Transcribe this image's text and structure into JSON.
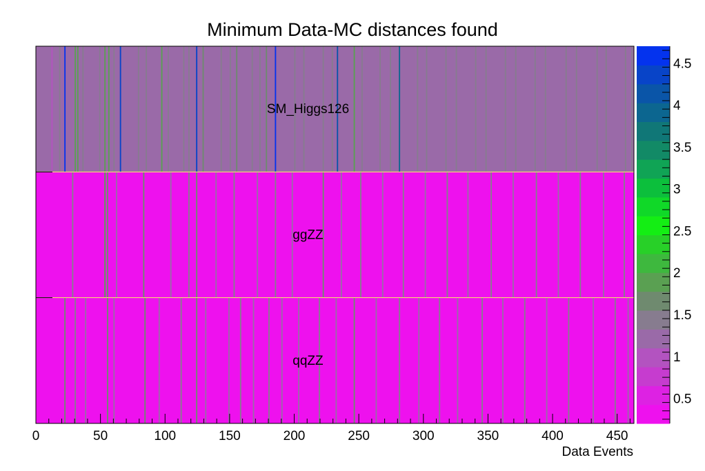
{
  "chart_data": {
    "type": "heatmap",
    "title": "Minimum Data-MC distances found",
    "xlabel": "Data Events",
    "ylabel": "",
    "xlim": [
      0,
      463
    ],
    "x_ticks": [
      0,
      50,
      100,
      150,
      200,
      250,
      300,
      350,
      400,
      450
    ],
    "x_tick_labels": [
      "0",
      "50",
      "100",
      "150",
      "200",
      "250",
      "300",
      "350",
      "400",
      "450"
    ],
    "rows": [
      "qqZZ",
      "ggZZ",
      "SM_Higgs126"
    ],
    "colorbar": {
      "range": [
        0.2,
        4.7
      ],
      "ticks": [
        0.5,
        1,
        1.5,
        2,
        2.5,
        3,
        3.5,
        4,
        4.5
      ],
      "tick_labels": [
        "0.5",
        "1",
        "1.5",
        "2",
        "2.5",
        "3",
        "3.5",
        "4",
        "4.5"
      ],
      "palette": [
        "#ee11ee",
        "#dd22e3",
        "#c63ccf",
        "#b353c0",
        "#9a6aa8",
        "#877c8f",
        "#6f8a6f",
        "#5aa052",
        "#3eb83e",
        "#28d028",
        "#14ee14",
        "#10d828",
        "#0cbf3c",
        "#10a455",
        "#128a66",
        "#107777",
        "#0c6690",
        "#0a55a8",
        "#0844c8",
        "#0433ee"
      ]
    },
    "cells": {
      "qqZZ": {
        "default": 0.2,
        "values": [
          [
            22,
            1.6
          ],
          [
            30,
            1.5
          ],
          [
            38,
            1.3
          ],
          [
            55,
            1.6
          ],
          [
            60,
            1.2
          ],
          [
            84,
            1.6
          ],
          [
            95,
            1.3
          ],
          [
            112,
            1.4
          ],
          [
            124,
            1.6
          ],
          [
            131,
            1.2
          ],
          [
            149,
            1.3
          ],
          [
            158,
            1.5
          ],
          [
            168,
            1.3
          ],
          [
            180,
            1.5
          ],
          [
            190,
            1.2
          ],
          [
            203,
            1.3
          ],
          [
            219,
            1.5
          ],
          [
            232,
            1.3
          ],
          [
            246,
            1.6
          ],
          [
            263,
            1.3
          ],
          [
            281,
            1.5
          ],
          [
            296,
            1.3
          ],
          [
            312,
            1.5
          ],
          [
            326,
            1.3
          ],
          [
            345,
            1.5
          ],
          [
            361,
            1.3
          ],
          [
            378,
            1.5
          ],
          [
            395,
            1.3
          ],
          [
            412,
            1.5
          ],
          [
            431,
            1.3
          ],
          [
            448,
            1.5
          ],
          [
            458,
            1.3
          ]
        ]
      },
      "ggZZ": {
        "default": 0.2,
        "values": [
          [
            28,
            1.4
          ],
          [
            53,
            1.8
          ],
          [
            55,
            1.7
          ],
          [
            62,
            1.3
          ],
          [
            83,
            1.7
          ],
          [
            104,
            1.3
          ],
          [
            118,
            1.4
          ],
          [
            124,
            1.6
          ],
          [
            139,
            1.3
          ],
          [
            153,
            1.5
          ],
          [
            171,
            1.3
          ],
          [
            185,
            1.4
          ],
          [
            198,
            1.3
          ],
          [
            222,
            1.7
          ],
          [
            236,
            1.3
          ],
          [
            251,
            1.4
          ],
          [
            268,
            1.3
          ],
          [
            284,
            1.5
          ],
          [
            301,
            1.3
          ],
          [
            318,
            1.4
          ],
          [
            334,
            1.3
          ],
          [
            352,
            1.4
          ],
          [
            369,
            1.3
          ],
          [
            387,
            1.4
          ],
          [
            404,
            1.3
          ],
          [
            421,
            1.4
          ],
          [
            439,
            1.3
          ],
          [
            455,
            1.4
          ]
        ]
      },
      "SM_Higgs126": {
        "default": 1.1,
        "values": [
          [
            5,
            1.3
          ],
          [
            12,
            0.9
          ],
          [
            18,
            1.4
          ],
          [
            22,
            4.5
          ],
          [
            27,
            1.3
          ],
          [
            30,
            1.8
          ],
          [
            32,
            1.9
          ],
          [
            36,
            1.4
          ],
          [
            43,
            1.3
          ],
          [
            49,
            1.5
          ],
          [
            53,
            1.9
          ],
          [
            56,
            1.8
          ],
          [
            60,
            1.4
          ],
          [
            65,
            4.3
          ],
          [
            72,
            1.3
          ],
          [
            79,
            1.5
          ],
          [
            85,
            1.4
          ],
          [
            92,
            1.3
          ],
          [
            97,
            1.8
          ],
          [
            102,
            1.5
          ],
          [
            108,
            1.3
          ],
          [
            114,
            1.4
          ],
          [
            118,
            1.5
          ],
          [
            124,
            4.4
          ],
          [
            129,
            1.7
          ],
          [
            136,
            1.3
          ],
          [
            143,
            1.5
          ],
          [
            150,
            1.4
          ],
          [
            155,
            1.7
          ],
          [
            160,
            1.3
          ],
          [
            167,
            1.5
          ],
          [
            173,
            1.4
          ],
          [
            178,
            1.7
          ],
          [
            185,
            4.6
          ],
          [
            192,
            1.3
          ],
          [
            200,
            1.5
          ],
          [
            207,
            1.4
          ],
          [
            214,
            1.3
          ],
          [
            222,
            1.5
          ],
          [
            229,
            1.4
          ],
          [
            233,
            4.2
          ],
          [
            240,
            1.3
          ],
          [
            246,
            1.9
          ],
          [
            252,
            1.4
          ],
          [
            259,
            1.3
          ],
          [
            266,
            1.5
          ],
          [
            274,
            1.4
          ],
          [
            281,
            4.0
          ],
          [
            288,
            1.3
          ],
          [
            295,
            1.5
          ],
          [
            302,
            1.4
          ],
          [
            310,
            1.3
          ],
          [
            317,
            1.5
          ],
          [
            325,
            1.4
          ],
          [
            332,
            1.3
          ],
          [
            340,
            1.5
          ],
          [
            348,
            1.4
          ],
          [
            355,
            1.3
          ],
          [
            363,
            1.5
          ],
          [
            371,
            1.4
          ],
          [
            379,
            1.3
          ],
          [
            386,
            1.5
          ],
          [
            394,
            1.4
          ],
          [
            402,
            1.3
          ],
          [
            410,
            1.5
          ],
          [
            418,
            1.4
          ],
          [
            426,
            1.3
          ],
          [
            434,
            1.5
          ],
          [
            441,
            1.4
          ],
          [
            449,
            1.3
          ],
          [
            456,
            1.5
          ],
          [
            461,
            1.4
          ]
        ]
      }
    }
  }
}
